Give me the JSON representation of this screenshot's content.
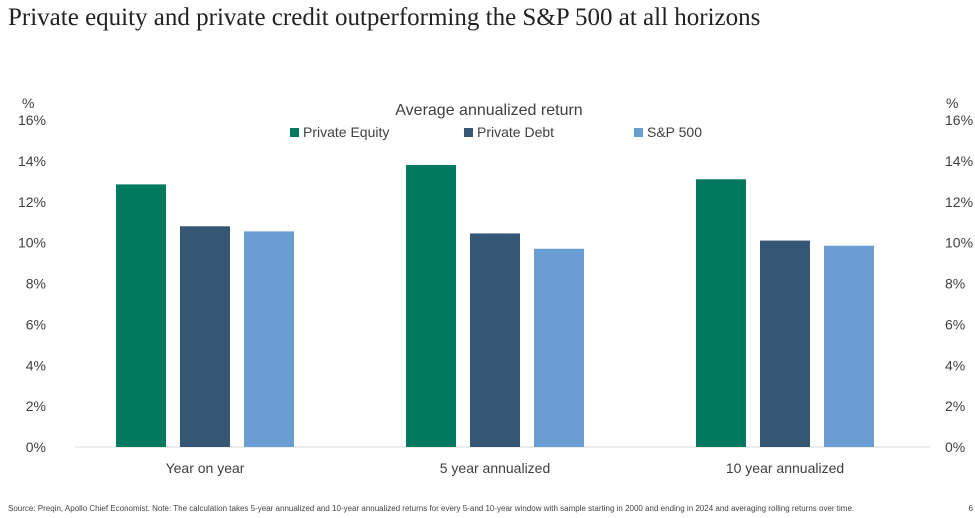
{
  "page": {
    "title": "Private equity and private credit outperforming the S&P 500 at all horizons",
    "source": "Source: Preqin, Apollo Chief Economist. Note: The calculation takes 5-year annualized and 10-year annualized returns for every 5-and 10-year window with sample starting in 2000 and ending in 2024 and averaging rolling returns over time.",
    "page_number": "6"
  },
  "chart_data": {
    "type": "bar",
    "title": "Average annualized return",
    "categories": [
      "Year on year",
      "5 year annualized",
      "10 year annualized"
    ],
    "series": [
      {
        "name": "Private Equity",
        "values": [
          12.85,
          13.8,
          13.1
        ],
        "color": "#007A5E"
      },
      {
        "name": "Private Debt",
        "values": [
          10.8,
          10.45,
          10.1
        ],
        "color": "#365676"
      },
      {
        "name": "S&P 500",
        "values": [
          10.55,
          9.7,
          9.85
        ],
        "color": "#6A9ED2"
      }
    ],
    "ylim": [
      0,
      16
    ],
    "yticks": [
      "0%",
      "2%",
      "4%",
      "6%",
      "8%",
      "10%",
      "12%",
      "14%",
      "16%"
    ],
    "ylabel_left": "%",
    "ylabel_right": "%",
    "grid": false,
    "legend": "top-center"
  }
}
